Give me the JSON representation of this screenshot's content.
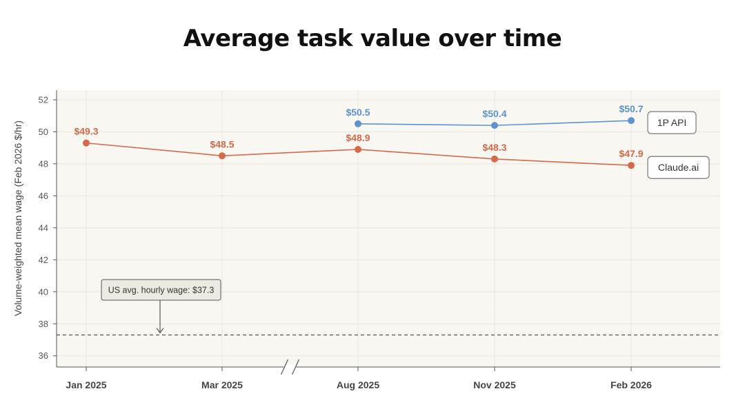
{
  "chart_data": {
    "type": "line",
    "title": "Average task value over time",
    "xlabel": "",
    "ylabel": "Volume-weighted mean wage (Feb 2026 $/hr)",
    "ylim": [
      35.3,
      52.6
    ],
    "yticks": [
      36,
      38,
      40,
      42,
      44,
      46,
      48,
      50,
      52
    ],
    "categories": [
      "Jan 2025",
      "Mar 2025",
      "Aug 2025",
      "Nov 2025",
      "Feb 2026"
    ],
    "axis_break_between": [
      "Mar 2025",
      "Aug 2025"
    ],
    "grid": true,
    "series": [
      {
        "name": "1P API",
        "color": "#5b93cc",
        "values": [
          null,
          null,
          50.5,
          50.4,
          50.7
        ],
        "labels": [
          null,
          null,
          "$50.5",
          "$50.4",
          "$50.7"
        ]
      },
      {
        "name": "Claude.ai",
        "color": "#d5694a",
        "values": [
          49.3,
          48.5,
          48.9,
          48.3,
          47.9
        ],
        "labels": [
          "$49.3",
          "$48.5",
          "$48.9",
          "$48.3",
          "$47.9"
        ]
      }
    ],
    "reference_line": {
      "value": 37.3,
      "label": "US avg. hourly wage: $37.3",
      "style": "dashed"
    },
    "colors": {
      "plot_background": "#f9f7f1",
      "grid": "#e8e5dd",
      "axis": "#555555",
      "reference": "#555555"
    }
  }
}
